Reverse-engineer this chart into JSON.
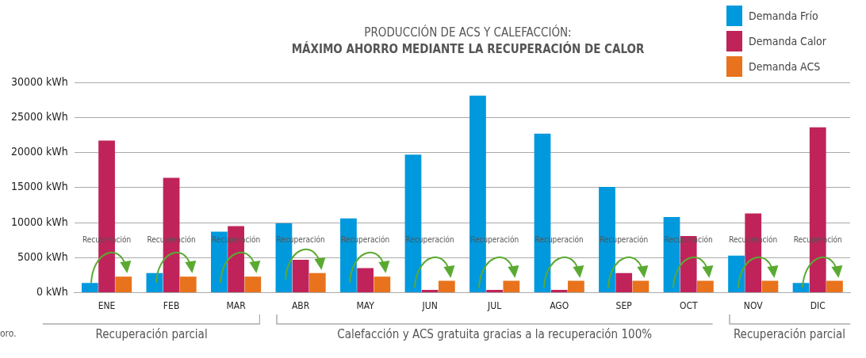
{
  "chart_data": {
    "type": "bar",
    "title": "PRODUCCIÓN DE ACS Y CALEFACCIÓN:",
    "subtitle": "MÁXIMO AHORRO MEDIANTE LA RECUPERACIÓN DE CALOR",
    "categories": [
      "ENE",
      "FEB",
      "MAR",
      "ABR",
      "MAY",
      "JUN",
      "JUL",
      "AGO",
      "SEP",
      "OCT",
      "NOV",
      "DIC"
    ],
    "series": [
      {
        "name": "Demanda Frío",
        "color": "#0099dd",
        "values": [
          1400,
          2800,
          8700,
          9900,
          10600,
          19700,
          28100,
          22700,
          15100,
          10800,
          5300,
          1400
        ]
      },
      {
        "name": "Demanda Calor",
        "color": "#c0235a",
        "values": [
          21700,
          16400,
          9500,
          4700,
          3500,
          400,
          400,
          400,
          2800,
          8100,
          11300,
          23600
        ]
      },
      {
        "name": "Demanda ACS",
        "color": "#e8731c",
        "values": [
          2300,
          2300,
          2300,
          2800,
          2300,
          1700,
          1700,
          1700,
          1700,
          1700,
          1700,
          1700
        ]
      }
    ],
    "ylim": [
      0,
      30000
    ],
    "yticks": [
      {
        "value": 0,
        "label": "0 kWh"
      },
      {
        "value": 5000,
        "label": "5000 kWh"
      },
      {
        "value": 10000,
        "label": "10000 kWh"
      },
      {
        "value": 15000,
        "label": "15000 kWh"
      },
      {
        "value": 20000,
        "label": "20000 kWh"
      },
      {
        "value": 25000,
        "label": "25000 kWh"
      },
      {
        "value": 30000,
        "label": "30000 kWh"
      }
    ],
    "grid": "y",
    "legend": "top right",
    "annotations": [
      "Recuperación",
      "Recuperación",
      "Recuperación",
      "Recuperación",
      "Recuperación",
      "Recuperación",
      "Recuperación",
      "Recuperación",
      "Recuperación",
      "Recuperación",
      "Recuperación",
      "Recuperación",
      "Recuperación parcial",
      "Calefacción y ACS gratuita gracias a la recuperación 100%",
      "Recuperación parcial",
      "oro."
    ]
  }
}
